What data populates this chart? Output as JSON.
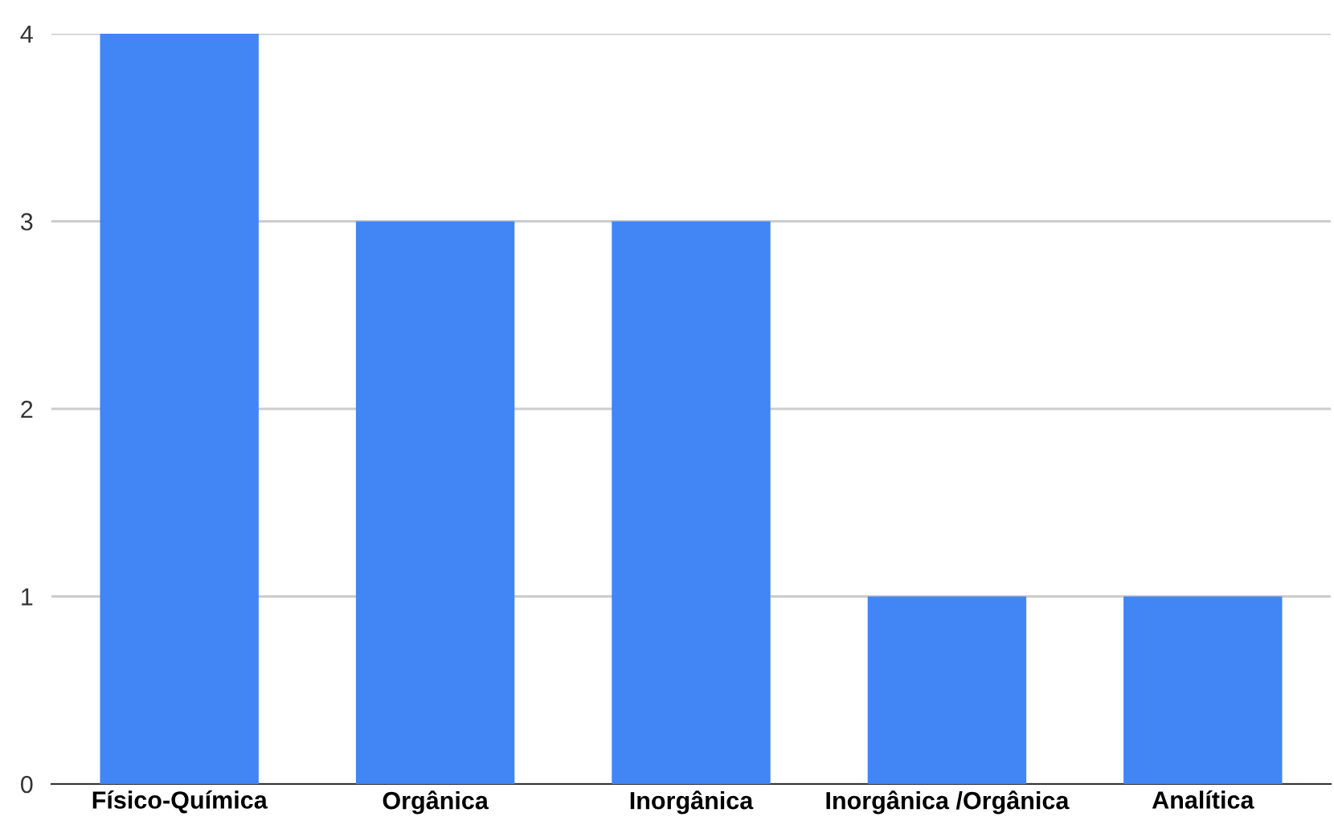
{
  "chart_data": {
    "type": "bar",
    "categories": [
      "Físico-Química",
      "Orgânica",
      "Inorgânica",
      "Inorgânica /Orgânica",
      "Analítica"
    ],
    "values": [
      4,
      3,
      3,
      1,
      1
    ],
    "color": "#4285f4",
    "ylim": [
      0,
      4
    ],
    "yticks": [
      0,
      1,
      2,
      3,
      4
    ],
    "grid": "y",
    "legend": false
  }
}
